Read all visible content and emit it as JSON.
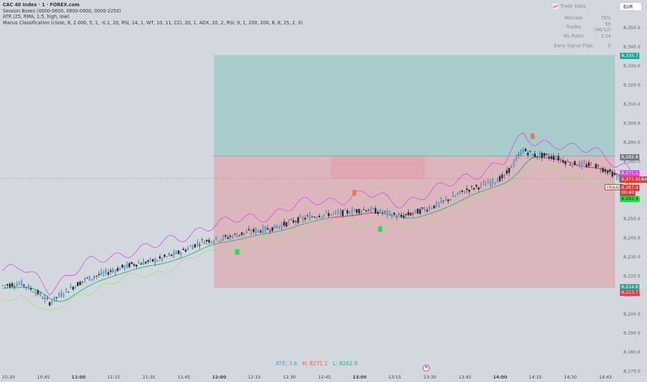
{
  "legend": {
    "symbol": "CAC 40 Index · 1 · FOREX.com",
    "session": "Session Boxes (0000-0600, 0800-0900, 0000-2250)",
    "atr": "ATR (25, RMA, 1.5, high, low)",
    "classification": "Manus Classification (close, 8, 2.000, 5, 1, -0.1, 20, RSI, 14, 1, WT, 10, 11, CCI, 20, 1, ADX, 20, 2, RSI, 9, 1, 200, 200, 8, 8, 25, 2, 0)"
  },
  "trade_stats": {
    "title": "Trade Stats",
    "rows": [
      {
        "label": "Winrate",
        "value": "78%"
      },
      {
        "label": "Trades",
        "value": "59 (46/13)"
      },
      {
        "label": "WL Ratio",
        "value": "3.54"
      },
      {
        "label": "Early Signal Flips",
        "value": "0"
      }
    ]
  },
  "currency": "EUR",
  "price_axis": {
    "ticks": [
      "8,350.0",
      "8,340.0",
      "8,330.0",
      "8,320.0",
      "8,310.0",
      "8,300.0",
      "8,290.0",
      "8,280.0",
      "8,270.0",
      "8,260.0",
      "8,250.0",
      "8,240.0",
      "8,230.0",
      "8,220.0",
      "8,210.0",
      "8,200.0",
      "8,190.0",
      "8,180.0",
      "8,170.0"
    ],
    "tags": [
      {
        "text": "8,335.7",
        "color": "#26a69a"
      },
      {
        "text": "8,282.8",
        "color": "#787b86"
      },
      {
        "text": "8,271.1",
        "color": "#e040fb"
      },
      {
        "text": "8,271.0184",
        "color": "#d33f32"
      },
      {
        "text": "8,267.0",
        "color": "#d33f32"
      },
      {
        "text": "00:40",
        "color": "#d33f32"
      },
      {
        "text": "8,262.9",
        "color": "#2ed84b"
      },
      {
        "text": "8,214.6",
        "color": "#26a69a"
      },
      {
        "text": "8,213.7",
        "color": "#f23645"
      }
    ],
    "symbol_tag": "FRA40"
  },
  "time_axis": {
    "labels": [
      {
        "text": "10:30",
        "bold": false
      },
      {
        "text": "10:45",
        "bold": false
      },
      {
        "text": "11:00",
        "bold": true
      },
      {
        "text": "11:15",
        "bold": false
      },
      {
        "text": "11:30",
        "bold": false
      },
      {
        "text": "11:45",
        "bold": false
      },
      {
        "text": "12:00",
        "bold": true
      },
      {
        "text": "12:15",
        "bold": false
      },
      {
        "text": "12:30",
        "bold": false
      },
      {
        "text": "12:45",
        "bold": false
      },
      {
        "text": "13:00",
        "bold": true
      },
      {
        "text": "13:15",
        "bold": false
      },
      {
        "text": "13:30",
        "bold": false
      },
      {
        "text": "13:45",
        "bold": false
      },
      {
        "text": "14:00",
        "bold": true
      },
      {
        "text": "14:15",
        "bold": false
      },
      {
        "text": "14:30",
        "bold": false
      },
      {
        "text": "14:45",
        "bold": false
      }
    ]
  },
  "bottom_stats": {
    "atr": "ATR: 3.6",
    "high": "H: 8271.1",
    "low": "L: 8262.9"
  },
  "colors": {
    "bull": "#26a69a",
    "bear": "#ef5350",
    "envelope_upper": "#d946ef",
    "envelope_lower": "#9ae66e",
    "profit_zone": "#a8cbcb",
    "loss_zone": "#dcb6bd",
    "ma_up": "#20b486",
    "ma_down": "#e0344c"
  },
  "chart_data": {
    "type": "candlestick",
    "y_range": [
      8170,
      8355
    ],
    "time_range": [
      "10:30",
      "14:50"
    ],
    "position_box": {
      "start": "12:00",
      "end": "14:50",
      "entry": 8282.8,
      "target": 8335.7,
      "stop": 8213.7
    },
    "secondary_box": {
      "start": "12:50",
      "end": "13:30",
      "top": 8282.8,
      "bottom": 8271.0
    },
    "path": [
      [
        0,
        8215
      ],
      [
        8,
        8216
      ],
      [
        15,
        8211
      ],
      [
        20,
        8206
      ],
      [
        27,
        8212
      ],
      [
        35,
        8218
      ],
      [
        45,
        8222
      ],
      [
        55,
        8226
      ],
      [
        65,
        8228
      ],
      [
        75,
        8232
      ],
      [
        85,
        8238
      ],
      [
        95,
        8240
      ],
      [
        105,
        8243
      ],
      [
        115,
        8245
      ],
      [
        125,
        8249
      ],
      [
        135,
        8252
      ],
      [
        145,
        8253
      ],
      [
        155,
        8255
      ],
      [
        163,
        8253
      ],
      [
        170,
        8251
      ],
      [
        178,
        8254
      ],
      [
        185,
        8257
      ],
      [
        190,
        8260
      ],
      [
        198,
        8265
      ],
      [
        206,
        8268
      ],
      [
        214,
        8272
      ],
      [
        222,
        8286
      ],
      [
        227,
        8283
      ],
      [
        230,
        8283
      ],
      [
        236,
        8282
      ],
      [
        242,
        8279
      ],
      [
        248,
        8278
      ],
      [
        252,
        8278
      ],
      [
        258,
        8275
      ],
      [
        262,
        8272
      ],
      [
        266,
        8270
      ],
      [
        268,
        8267
      ]
    ],
    "signals": [
      {
        "t": 100,
        "type": "buy"
      },
      {
        "t": 150,
        "type": "sell"
      },
      {
        "t": 161,
        "type": "buy"
      },
      {
        "t": 226,
        "type": "sell"
      }
    ]
  }
}
